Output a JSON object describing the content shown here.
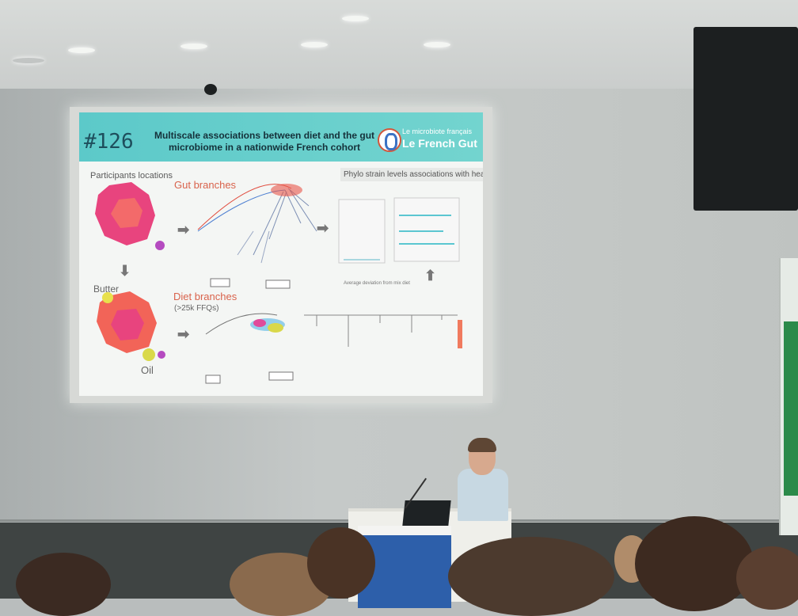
{
  "slide": {
    "number": "#126",
    "title": "Multiscale associations between diet and the gut microbiome in a nationwide French cohort",
    "brand_subtitle": "Le microbiote français",
    "brand_name": "Le French Gut",
    "participants_label": "Participants locations",
    "gut_branches_label": "Gut branches",
    "phylo_label": "Phylo strain levels associations with health and diet",
    "butter_label": "Butter",
    "diet_branches_label": "Diet branches",
    "ffq_label": "(>25k FFQs)",
    "oil_label": "Oil",
    "avg_label": "Average deviation from mix diet"
  },
  "colors": {
    "slide_header": "#5cc9c9",
    "accent_red": "#d9634c",
    "podium_sign": "#2d5faa"
  }
}
